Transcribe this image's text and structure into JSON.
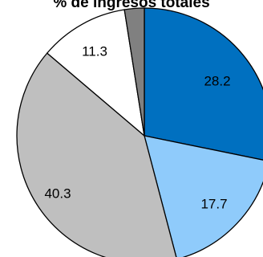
{
  "chart_data": {
    "type": "pie",
    "title": "% de ingresos totales",
    "start_angle_deg": 0,
    "direction": "clockwise",
    "slices": [
      {
        "value": 28.2,
        "label": "28.2",
        "color": "#0070C0"
      },
      {
        "value": 17.7,
        "label": "17.7",
        "color": "#8FCBFB"
      },
      {
        "value": 40.3,
        "label": "40.3",
        "color": "#BFBFBF"
      },
      {
        "value": 11.3,
        "label": "11.3",
        "color": "#FFFFFF"
      },
      {
        "value": 2.5,
        "label": "",
        "color": "#808080"
      }
    ]
  }
}
